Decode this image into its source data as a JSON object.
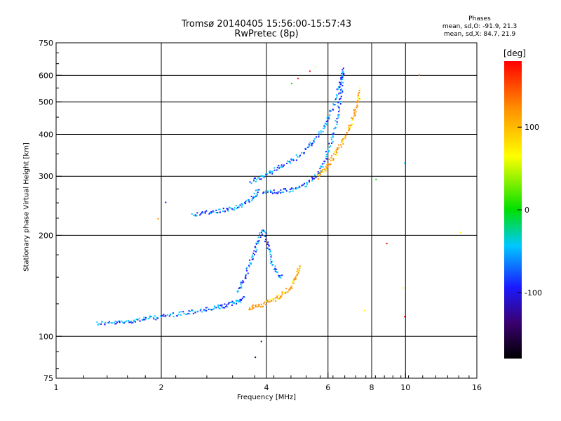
{
  "header": {
    "title": "Tromsø 20140405 15:56:00-15:57:43",
    "subtitle": "RwPretec (8p)",
    "phases_title": "Phases",
    "phases_o": "mean, sd,O: -91.9, 21.3",
    "phases_x": "mean, sd,X:  84.7, 21.9"
  },
  "chart_data": {
    "type": "scatter",
    "title": "Tromsø 20140405 15:56:00-15:57:43",
    "subtitle": "RwPretec (8p)",
    "xlabel": "Frequency [MHz]",
    "ylabel": "Stationary phase Virtual Height [km]",
    "x_scale": "log",
    "y_scale": "log",
    "xlim": [
      1,
      16
    ],
    "ylim": [
      75,
      750
    ],
    "x_ticks": [
      "1",
      "2",
      "4",
      "6",
      "8",
      "10",
      "16"
    ],
    "x_tick_values": [
      1,
      2,
      4,
      6,
      8,
      10,
      16
    ],
    "y_ticks": [
      "75",
      "100",
      "200",
      "300",
      "400",
      "500",
      "600",
      "750"
    ],
    "y_tick_values": [
      75,
      100,
      200,
      300,
      400,
      500,
      600,
      750
    ],
    "x_gridlines": [
      2,
      4,
      6,
      8,
      10
    ],
    "y_gridlines": [
      100,
      200,
      300,
      400,
      500,
      600
    ],
    "grid": true,
    "colorbar": {
      "label": "[deg]",
      "range": [
        -180,
        180
      ],
      "ticks": [
        "100",
        "0",
        "-100"
      ],
      "tick_values": [
        100,
        0,
        -100
      ]
    },
    "series": [
      {
        "mode": "O",
        "color_value": -92,
        "segments": [
          {
            "x": [
              1.3,
              1.45,
              1.6,
              1.75,
              1.9,
              2.1,
              2.35,
              2.6,
              2.85,
              3.05,
              3.25,
              3.45
            ],
            "y": [
              110,
              110,
              111,
              113,
              114,
              116,
              118,
              120,
              122,
              124,
              127,
              131
            ]
          },
          {
            "x": [
              2.45,
              2.7,
              2.95,
              3.2,
              3.45,
              3.65,
              3.8
            ],
            "y": [
              232,
              235,
              238,
              242,
              250,
              260,
              275
            ]
          },
          {
            "x": [
              3.9,
              4.3,
              4.7,
              5.1,
              5.5,
              5.8,
              6.05,
              6.3,
              6.45,
              6.55,
              6.6
            ],
            "y": [
              270,
              271,
              274,
              283,
              300,
              330,
              370,
              430,
              500,
              570,
              640
            ]
          },
          {
            "x": [
              3.6,
              3.9,
              4.2,
              4.6,
              5.0,
              5.4,
              5.8,
              6.1,
              6.4,
              6.6
            ],
            "y": [
              290,
              300,
              315,
              330,
              350,
              380,
              420,
              470,
              540,
              620
            ]
          },
          {
            "x": [
              3.3,
              3.45,
              3.6,
              3.75,
              3.9,
              4.05,
              4.2,
              4.4
            ],
            "y": [
              135,
              150,
              170,
              190,
              210,
              180,
              160,
              150
            ]
          }
        ]
      },
      {
        "mode": "X",
        "color_value": 85,
        "segments": [
          {
            "x": [
              3.55,
              3.8,
              4.1,
              4.4,
              4.65,
              4.85,
              4.95
            ],
            "y": [
              122,
              124,
              128,
              133,
              140,
              150,
              165
            ]
          },
          {
            "x": [
              5.6,
              5.9,
              6.2,
              6.5,
              6.8,
              7.05,
              7.25,
              7.4
            ],
            "y": [
              300,
              320,
              345,
              375,
              410,
              450,
              500,
              550
            ]
          }
        ]
      }
    ],
    "scattered_points": [
      {
        "x": 4.7,
        "y": 570
      },
      {
        "x": 4.9,
        "y": 590
      },
      {
        "x": 5.3,
        "y": 620
      },
      {
        "x": 5.5,
        "y": 640
      },
      {
        "x": 1.95,
        "y": 225
      },
      {
        "x": 2.05,
        "y": 252
      },
      {
        "x": 8.8,
        "y": 190
      },
      {
        "x": 9.9,
        "y": 115
      },
      {
        "x": 9.8,
        "y": 140
      },
      {
        "x": 10.9,
        "y": 605
      },
      {
        "x": 14.3,
        "y": 205
      },
      {
        "x": 3.7,
        "y": 87
      },
      {
        "x": 3.85,
        "y": 97
      },
      {
        "x": 7.6,
        "y": 120
      },
      {
        "x": 8.2,
        "y": 295
      },
      {
        "x": 9.9,
        "y": 330
      }
    ]
  }
}
